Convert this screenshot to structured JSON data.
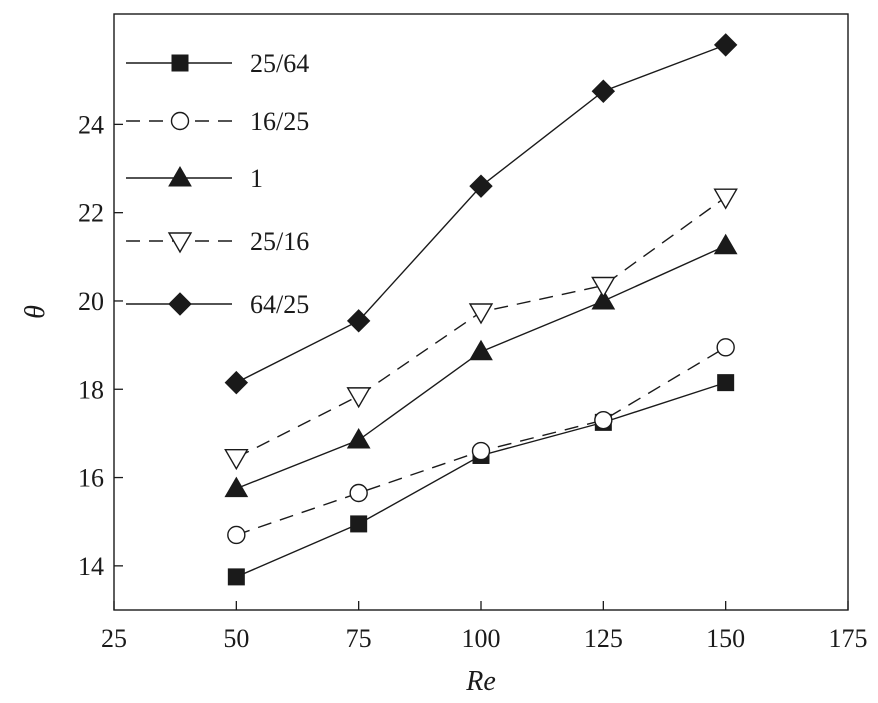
{
  "chart_data": {
    "type": "line",
    "title": "",
    "xlabel": "Re",
    "ylabel": "θ",
    "xlim": [
      25,
      175
    ],
    "ylim": [
      13,
      26.5
    ],
    "xticks": [
      25,
      50,
      75,
      100,
      125,
      150,
      175
    ],
    "xtick_labels": [
      "25",
      "50",
      "75",
      "100",
      "125",
      "150",
      "175"
    ],
    "yticks": [
      14,
      16,
      18,
      20,
      22,
      24
    ],
    "ytick_labels": [
      "14",
      "16",
      "18",
      "20",
      "22",
      "24"
    ],
    "grid": false,
    "legend_position": "top-left",
    "x": [
      50,
      75,
      100,
      125,
      150
    ],
    "series": [
      {
        "name": "25/64",
        "marker": "square-filled",
        "dash": "solid",
        "values": [
          13.75,
          14.95,
          16.5,
          17.25,
          18.15
        ]
      },
      {
        "name": "16/25",
        "marker": "circle-open",
        "dash": "dashed",
        "values": [
          14.7,
          15.65,
          16.6,
          17.3,
          18.95
        ]
      },
      {
        "name": "1",
        "marker": "triangle-up-filled",
        "dash": "solid",
        "values": [
          15.75,
          16.85,
          18.85,
          20.0,
          21.25
        ]
      },
      {
        "name": "25/16",
        "marker": "triangle-down-open",
        "dash": "dashed",
        "values": [
          16.45,
          17.85,
          19.75,
          20.35,
          22.35
        ]
      },
      {
        "name": "64/25",
        "marker": "diamond-filled",
        "dash": "solid",
        "values": [
          18.15,
          19.55,
          22.6,
          24.75,
          25.8
        ]
      }
    ]
  }
}
